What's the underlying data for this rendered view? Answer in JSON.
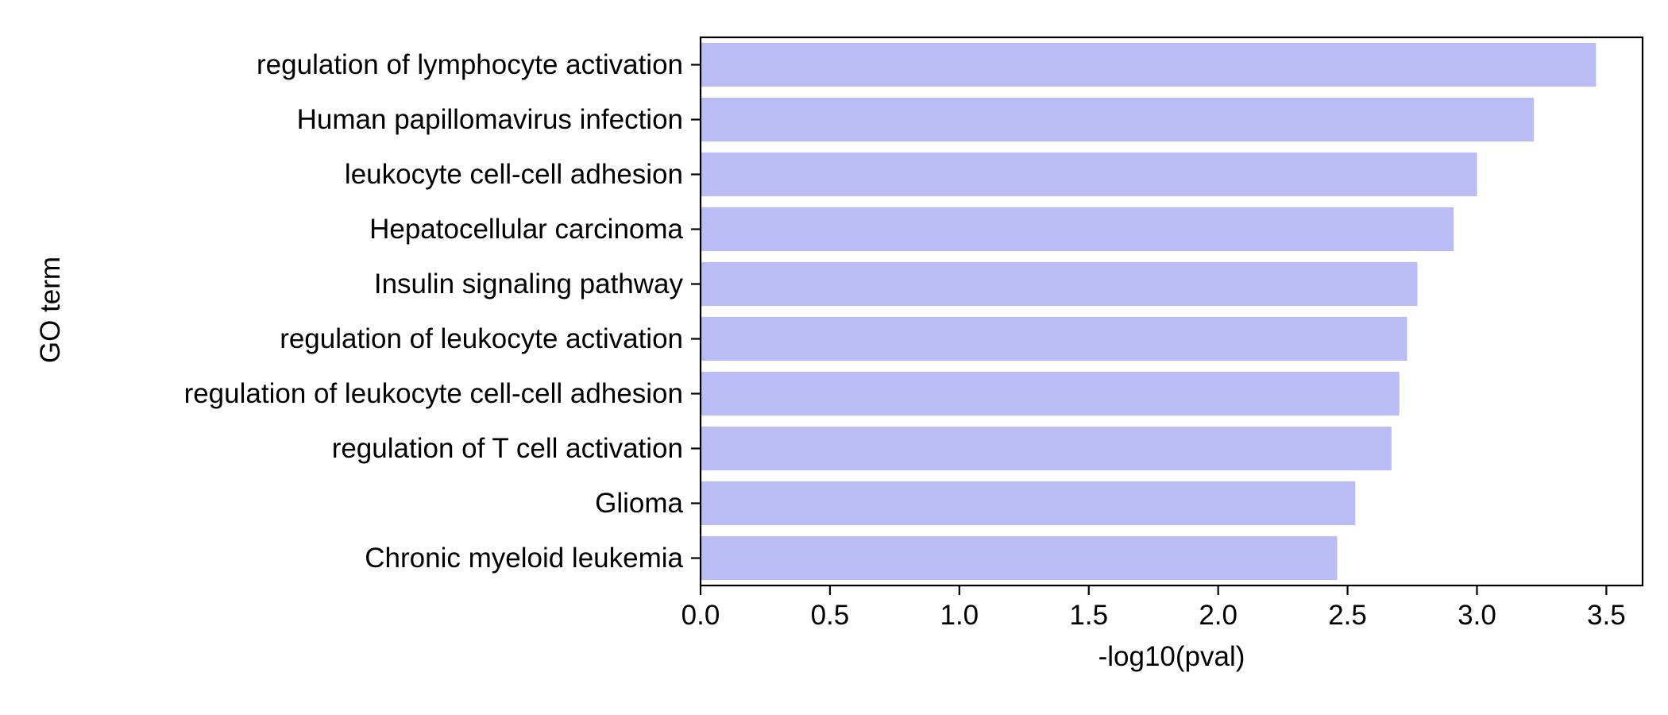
{
  "chart_data": {
    "type": "bar",
    "orientation": "horizontal",
    "categories": [
      "regulation of lymphocyte activation",
      "Human papillomavirus infection",
      "leukocyte cell-cell adhesion",
      "Hepatocellular carcinoma",
      "Insulin signaling pathway",
      "regulation of leukocyte activation",
      "regulation of leukocyte cell-cell adhesion",
      "regulation of T cell activation",
      "Glioma",
      "Chronic myeloid leukemia"
    ],
    "values": [
      3.46,
      3.22,
      3.0,
      2.91,
      2.77,
      2.73,
      2.7,
      2.67,
      2.53,
      2.46
    ],
    "xlabel": "-log10(pval)",
    "ylabel": "GO term",
    "xlim": [
      0,
      3.64
    ],
    "xticks": [
      0.0,
      0.5,
      1.0,
      1.5,
      2.0,
      2.5,
      3.0,
      3.5
    ],
    "xtick_labels": [
      "0.0",
      "0.5",
      "1.0",
      "1.5",
      "2.0",
      "2.5",
      "3.0",
      "3.5"
    ],
    "grid": false,
    "bar_color": "#babdf5"
  }
}
